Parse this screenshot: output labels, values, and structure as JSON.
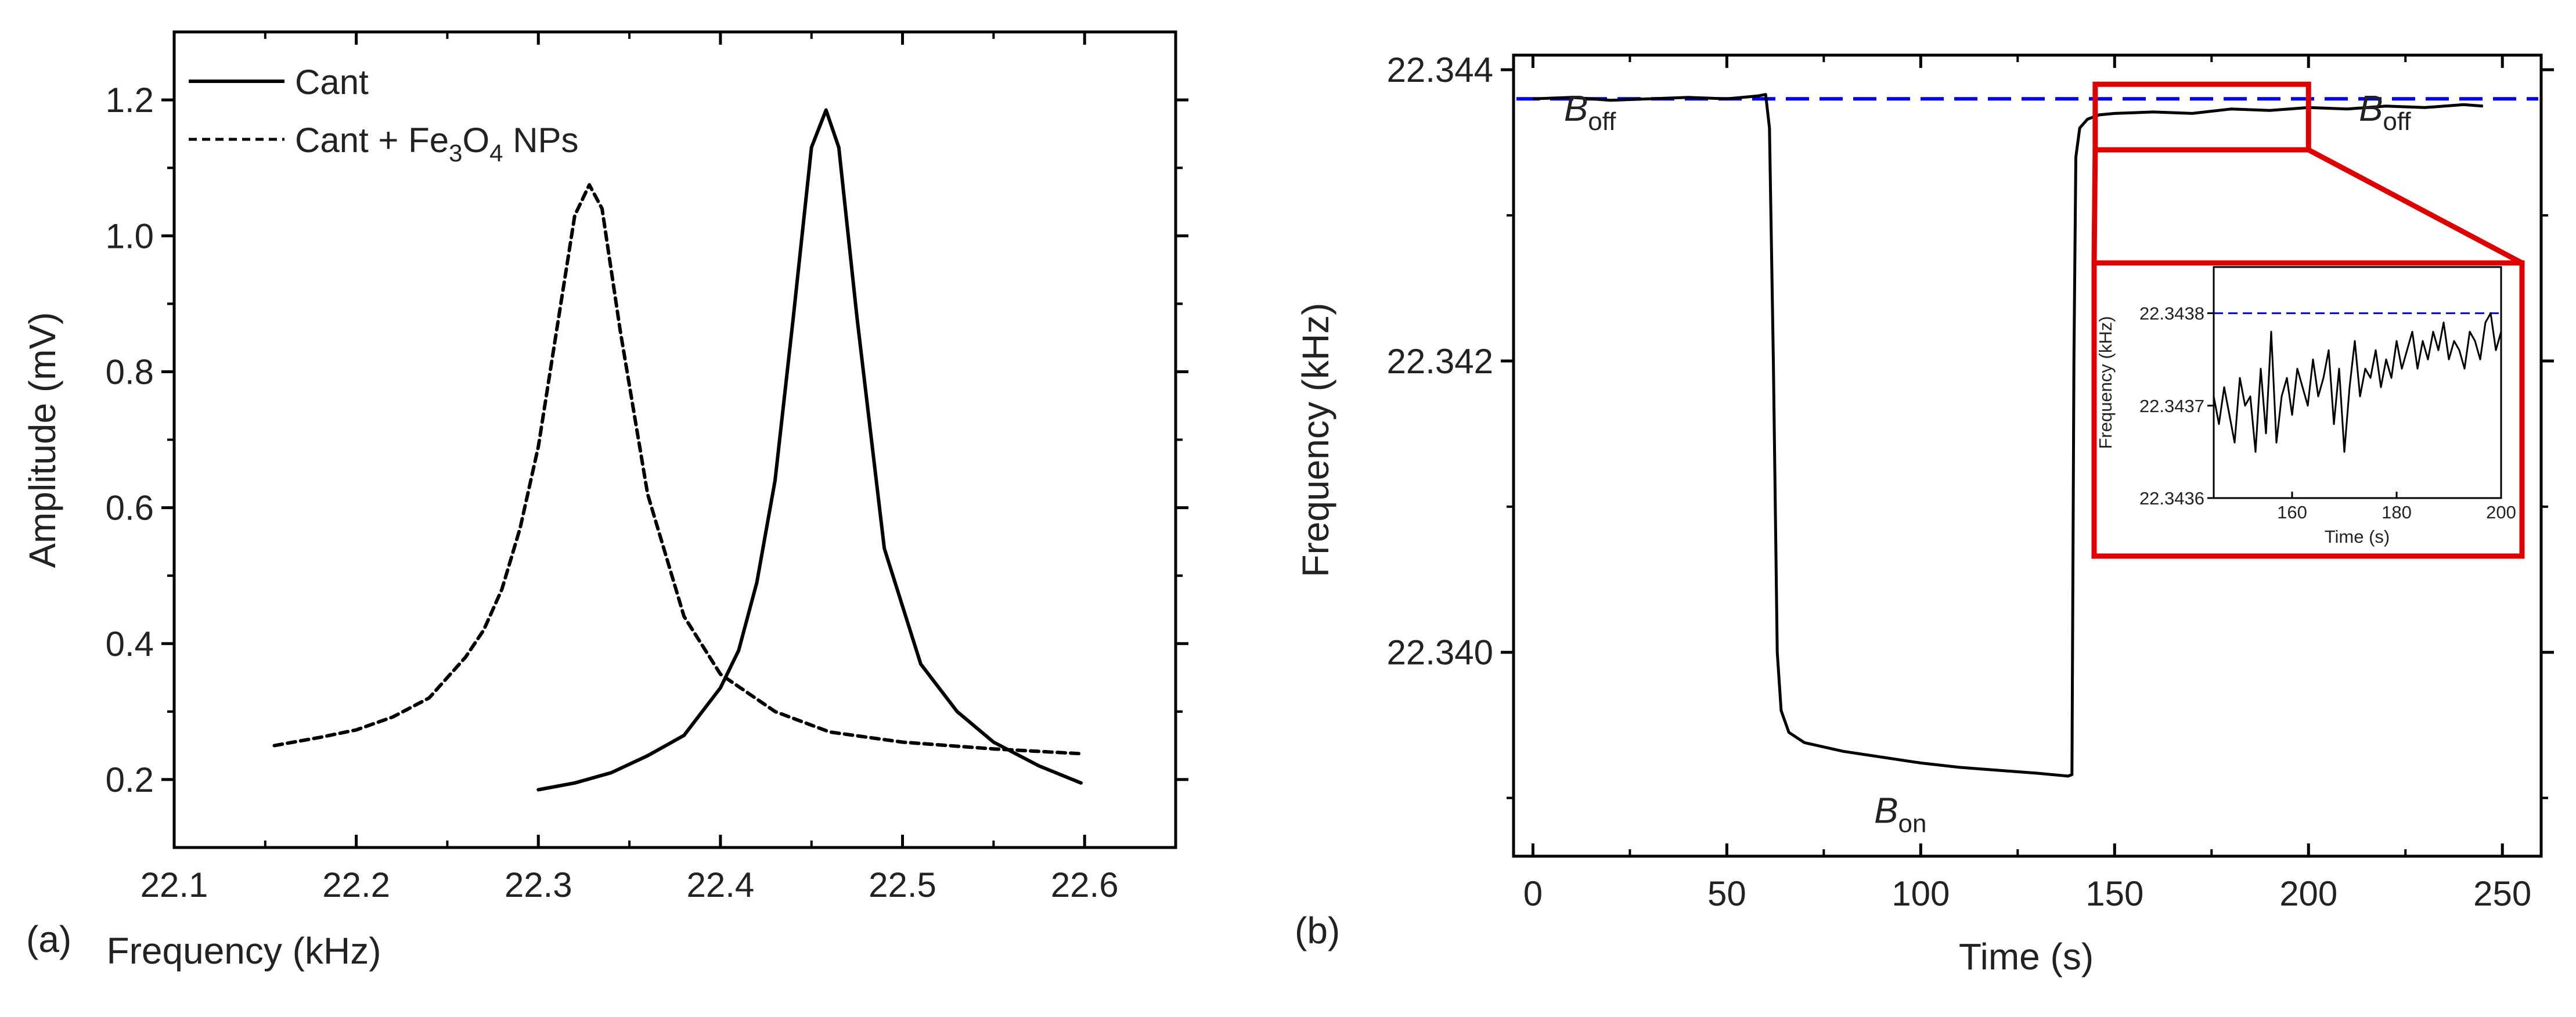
{
  "figure": {
    "panel_a_label": "(a)",
    "panel_b_label": "(b)"
  },
  "chart_data": [
    {
      "id": "a",
      "type": "line",
      "xlabel": "Frequency (kHz)",
      "ylabel": "Amplitude (mV)",
      "xlim": [
        22.1,
        22.65
      ],
      "ylim": [
        0.1,
        1.3
      ],
      "xticks": [
        22.1,
        22.2,
        22.3,
        22.4,
        22.5,
        22.6
      ],
      "xtick_labels": [
        "22.1",
        "22.2",
        "22.3",
        "22.4",
        "22.5",
        "22.6"
      ],
      "yticks": [
        0.2,
        0.4,
        0.6,
        0.8,
        1.0,
        1.2
      ],
      "ytick_labels": [
        "0.2",
        "0.4",
        "0.6",
        "0.8",
        "1.0",
        "1.2"
      ],
      "legend": {
        "position": "top-left",
        "entries": [
          {
            "label": "Cant",
            "style": "solid"
          },
          {
            "label_main": "Cant + Fe",
            "sub1": "3",
            "label_mid": "O",
            "sub2": "4",
            "label_end": " NPs",
            "style": "dashed"
          }
        ]
      },
      "series": [
        {
          "name": "Cant",
          "style": "solid",
          "color": "#000000",
          "x": [
            22.3,
            22.32,
            22.34,
            22.36,
            22.38,
            22.4,
            22.41,
            22.42,
            22.43,
            22.44,
            22.45,
            22.458,
            22.465,
            22.475,
            22.49,
            22.51,
            22.53,
            22.55,
            22.575,
            22.598
          ],
          "y": [
            0.185,
            0.195,
            0.21,
            0.235,
            0.265,
            0.335,
            0.39,
            0.49,
            0.64,
            0.88,
            1.13,
            1.185,
            1.13,
            0.88,
            0.54,
            0.37,
            0.3,
            0.255,
            0.22,
            0.195
          ]
        },
        {
          "name": "Cant + Fe3O4 NPs",
          "style": "dashed",
          "color": "#000000",
          "x": [
            22.155,
            22.18,
            22.2,
            22.22,
            22.24,
            22.26,
            22.27,
            22.28,
            22.29,
            22.3,
            22.31,
            22.32,
            22.328,
            22.335,
            22.345,
            22.36,
            22.38,
            22.4,
            22.43,
            22.46,
            22.5,
            22.55,
            22.598
          ],
          "y": [
            0.25,
            0.262,
            0.273,
            0.292,
            0.32,
            0.38,
            0.42,
            0.48,
            0.57,
            0.69,
            0.86,
            1.03,
            1.075,
            1.04,
            0.86,
            0.62,
            0.44,
            0.355,
            0.3,
            0.27,
            0.255,
            0.245,
            0.238
          ]
        }
      ]
    },
    {
      "id": "b",
      "type": "line",
      "xlabel": "Time (s)",
      "ylabel": "Frequency (kHz)",
      "xlim": [
        -5,
        260
      ],
      "ylim": [
        22.3386,
        22.3441
      ],
      "xticks": [
        0,
        50,
        100,
        150,
        200,
        250
      ],
      "xtick_labels": [
        "0",
        "50",
        "100",
        "150",
        "200",
        "250"
      ],
      "yticks": [
        22.34,
        22.342,
        22.344
      ],
      "ytick_labels": [
        "22.340",
        "22.342",
        "22.344"
      ],
      "reference_line": {
        "y": 22.3438,
        "color": "#0000ee",
        "style": "dashed"
      },
      "annotations": [
        {
          "main": "B",
          "sub": "off",
          "x": 8,
          "y": 22.34365
        },
        {
          "main": "B",
          "sub": "on",
          "x": 88,
          "y": 22.33883
        },
        {
          "main": "B",
          "sub": "off",
          "x": 213,
          "y": 22.34365
        }
      ],
      "series": [
        {
          "name": "Frequency",
          "color": "#000000",
          "x": [
            0,
            10,
            20,
            30,
            40,
            50,
            58,
            60,
            61,
            62,
            63,
            64,
            66,
            70,
            80,
            90,
            100,
            110,
            120,
            130,
            138,
            139,
            139.5,
            140,
            141,
            143,
            146,
            150,
            160,
            170,
            180,
            190,
            200,
            210,
            220,
            230,
            240,
            245
          ],
          "y": [
            22.3438,
            22.34381,
            22.34379,
            22.3438,
            22.34381,
            22.3438,
            22.34382,
            22.34383,
            22.3436,
            22.342,
            22.34,
            22.3396,
            22.33945,
            22.33938,
            22.33932,
            22.33928,
            22.33924,
            22.33921,
            22.33919,
            22.33917,
            22.33915,
            22.33916,
            22.342,
            22.3434,
            22.3436,
            22.34366,
            22.34369,
            22.3437,
            22.34371,
            22.3437,
            22.34373,
            22.34372,
            22.34374,
            22.34373,
            22.34375,
            22.34374,
            22.34376,
            22.34375
          ]
        }
      ],
      "zoom_box": {
        "x_range": [
          145,
          200
        ],
        "y_range": [
          22.34345,
          22.3439
        ],
        "color": "#dd0000"
      },
      "inset": {
        "xlabel": "Time (s)",
        "ylabel": "Frequency (kHz)",
        "xlim": [
          145,
          200
        ],
        "ylim": [
          22.3436,
          22.34385
        ],
        "xticks": [
          160,
          180,
          200
        ],
        "xtick_labels": [
          "160",
          "180",
          "200"
        ],
        "yticks": [
          22.3436,
          22.3437,
          22.3438
        ],
        "ytick_labels": [
          "22.3436",
          "22.3437",
          "22.3438"
        ],
        "reference_line": {
          "y": 22.3438,
          "color": "#0000ee",
          "style": "dashed"
        },
        "series": {
          "x": [
            145,
            146,
            147,
            148,
            149,
            150,
            151,
            152,
            153,
            154,
            155,
            156,
            157,
            158,
            159,
            160,
            161,
            162,
            163,
            164,
            165,
            166,
            167,
            168,
            169,
            170,
            171,
            172,
            173,
            174,
            175,
            176,
            177,
            178,
            179,
            180,
            181,
            182,
            183,
            184,
            185,
            186,
            187,
            188,
            189,
            190,
            191,
            192,
            193,
            194,
            195,
            196,
            197,
            198,
            199,
            200
          ],
          "y": [
            22.34371,
            22.34368,
            22.34372,
            22.34369,
            22.34366,
            22.34373,
            22.3437,
            22.34371,
            22.34365,
            22.34374,
            22.34367,
            22.34378,
            22.34366,
            22.34371,
            22.34373,
            22.34369,
            22.34374,
            22.34372,
            22.3437,
            22.34375,
            22.34371,
            22.34373,
            22.34376,
            22.34368,
            22.34374,
            22.34365,
            22.34372,
            22.34377,
            22.34371,
            22.34374,
            22.34373,
            22.34376,
            22.34372,
            22.34375,
            22.34373,
            22.34377,
            22.34374,
            22.34376,
            22.34378,
            22.34374,
            22.34377,
            22.34375,
            22.34378,
            22.34376,
            22.34379,
            22.34375,
            22.34377,
            22.34376,
            22.34374,
            22.34378,
            22.34377,
            22.34375,
            22.34379,
            22.3438,
            22.34376,
            22.34378
          ]
        }
      }
    }
  ]
}
